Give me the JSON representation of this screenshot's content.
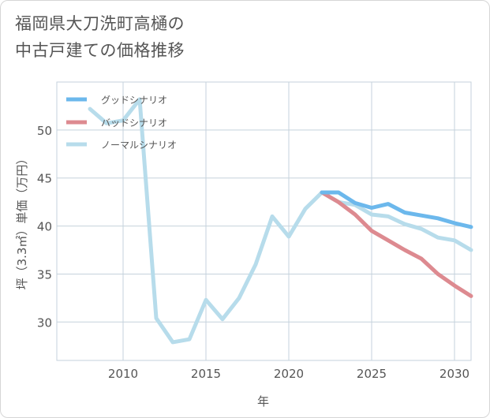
{
  "title_lines": [
    "福岡県大刀洗町高樋の",
    "中古戸建ての価格推移"
  ],
  "chart_data": {
    "type": "line",
    "title": "福岡県大刀洗町高樋の中古戸建ての価格推移",
    "xlabel": "年",
    "ylabel": "坪（3.3㎡）単価（万円）",
    "xlim": [
      2006,
      2031
    ],
    "ylim": [
      26,
      55
    ],
    "xticks": [
      2010,
      2015,
      2020,
      2025,
      2030
    ],
    "yticks": [
      30,
      35,
      40,
      45,
      50
    ],
    "grid": true,
    "legend_position": "top-left",
    "series": [
      {
        "name": "グッドシナリオ",
        "color": "#6cb8ec",
        "x": [
          2022,
          2023,
          2024,
          2025,
          2026,
          2027,
          2028,
          2029,
          2030,
          2031
        ],
        "y": [
          43.5,
          43.5,
          42.4,
          41.9,
          42.3,
          41.4,
          41.1,
          40.8,
          40.3,
          39.9
        ]
      },
      {
        "name": "バッドシナリオ",
        "color": "#dd8a90",
        "x": [
          2022,
          2023,
          2024,
          2025,
          2026,
          2027,
          2028,
          2029,
          2030,
          2031
        ],
        "y": [
          43.5,
          42.5,
          41.2,
          39.5,
          38.5,
          37.5,
          36.6,
          35.0,
          33.8,
          32.7
        ]
      },
      {
        "name": "ノーマルシナリオ",
        "color": "#b7dceb",
        "x": [
          2008,
          2009,
          2010,
          2011,
          2012,
          2013,
          2014,
          2015,
          2016,
          2017,
          2018,
          2019,
          2020,
          2021,
          2022,
          2023,
          2024,
          2025,
          2026,
          2027,
          2028,
          2029,
          2030,
          2031
        ],
        "y": [
          52.2,
          50.7,
          51.0,
          53.2,
          30.4,
          27.9,
          28.2,
          32.3,
          30.3,
          32.5,
          36.0,
          41.0,
          38.9,
          41.8,
          43.5,
          42.5,
          42.2,
          41.2,
          41.0,
          40.2,
          39.7,
          38.8,
          38.5,
          37.5
        ]
      }
    ]
  }
}
